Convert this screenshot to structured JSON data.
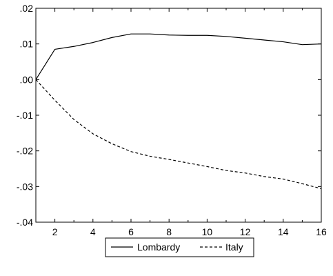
{
  "chart_data": {
    "type": "line",
    "x": [
      1,
      2,
      3,
      4,
      5,
      6,
      7,
      8,
      9,
      10,
      11,
      12,
      13,
      14,
      15,
      16
    ],
    "xlim": [
      1,
      16
    ],
    "ylim": [
      -0.04,
      0.02
    ],
    "x_ticks": [
      2,
      4,
      6,
      8,
      10,
      12,
      14,
      16
    ],
    "x_tick_labels": [
      "2",
      "4",
      "6",
      "8",
      "10",
      "12",
      "14",
      "16"
    ],
    "y_ticks": [
      0.02,
      0.01,
      0.0,
      -0.01,
      -0.02,
      -0.03,
      -0.04
    ],
    "y_tick_labels": [
      ".02",
      ".01",
      ".00",
      "-.01",
      "-.02",
      "-.03",
      "-.04"
    ],
    "grid": false,
    "legend_position": "bottom-center",
    "series": [
      {
        "name": "Lombardy",
        "style": "solid",
        "color": "#000000",
        "values": [
          0.0,
          0.0085,
          0.0093,
          0.0104,
          0.0118,
          0.0128,
          0.0128,
          0.0125,
          0.0124,
          0.0124,
          0.0121,
          0.0116,
          0.0111,
          0.0106,
          0.0098,
          0.01
        ]
      },
      {
        "name": "Italy",
        "style": "dashed",
        "color": "#000000",
        "values": [
          0.0,
          -0.0058,
          -0.0112,
          -0.0152,
          -0.018,
          -0.0202,
          -0.0215,
          -0.0224,
          -0.0234,
          -0.0244,
          -0.0255,
          -0.0262,
          -0.0272,
          -0.0279,
          -0.0292,
          -0.0306
        ]
      }
    ]
  }
}
